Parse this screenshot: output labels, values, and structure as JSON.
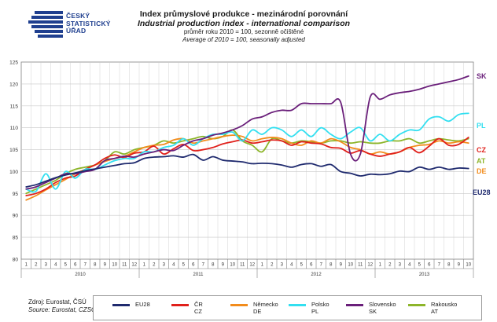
{
  "header": {
    "logo_lines": [
      "ČESKÝ",
      "STATISTICKÝ",
      "ÚŘAD"
    ],
    "title_cz": "Index průmyslové produkce - mezinárodní porovnání",
    "title_en": "Industrial production index - international comparison",
    "subtitle_cz": "průměr roku 2010 = 100, sezonně očištěné",
    "subtitle_en": "Average of 2010 = 100, seasonally adjusted"
  },
  "source": {
    "line_cz": "Zdroj: Eurostat, ČSÚ",
    "line_en": "Source: Eurostat, CZSO"
  },
  "colors": {
    "EU28": "#1f2a6e",
    "CZ": "#e0201b",
    "DE": "#f28c1c",
    "PL": "#33dff0",
    "SK": "#6a1f7a",
    "AT": "#8db52a",
    "grid": "#c8c8c8",
    "axis": "#7f7f7f"
  },
  "legend": [
    {
      "key": "EU28",
      "label_cz": "EU28",
      "label_en": ""
    },
    {
      "key": "CZ",
      "label_cz": "ČR",
      "label_en": "CZ"
    },
    {
      "key": "DE",
      "label_cz": "Německo",
      "label_en": "DE"
    },
    {
      "key": "PL",
      "label_cz": "Polsko",
      "label_en": "PL"
    },
    {
      "key": "SK",
      "label_cz": "Slovensko",
      "label_en": "SK"
    },
    {
      "key": "AT",
      "label_cz": "Rakousko",
      "label_en": "AT"
    }
  ],
  "chart_data": {
    "type": "line",
    "title": "Index průmyslové produkce - mezinárodní porovnání",
    "ylim": [
      80,
      125
    ],
    "yticks": [
      80,
      85,
      90,
      95,
      100,
      105,
      110,
      115,
      120,
      125
    ],
    "month_labels": [
      "1",
      "2",
      "3",
      "4",
      "5",
      "6",
      "7",
      "8",
      "9",
      "10",
      "11",
      "12",
      "1",
      "2",
      "3",
      "4",
      "5",
      "6",
      "7",
      "8",
      "9",
      "10",
      "11",
      "12",
      "1",
      "2",
      "3",
      "4",
      "5",
      "6",
      "7",
      "8",
      "9",
      "10",
      "11",
      "12",
      "1",
      "2",
      "3",
      "4",
      "5",
      "6",
      "7",
      "8",
      "9",
      "10"
    ],
    "year_labels": [
      "2010",
      "2011",
      "2012",
      "2013"
    ],
    "grid": true,
    "series_end_labels": {
      "SK": "SK",
      "PL": "PL",
      "CZ": "CZ",
      "AT": "AT",
      "DE": "DE",
      "EU28": "EU28"
    },
    "series": [
      {
        "name": "EU28",
        "values": [
          96.5,
          97.0,
          97.8,
          98.6,
          99.2,
          99.7,
          100.2,
          100.6,
          101.0,
          101.4,
          101.8,
          102.0,
          103.0,
          103.3,
          103.4,
          103.6,
          103.3,
          103.9,
          102.6,
          103.4,
          102.6,
          102.4,
          102.2,
          101.8,
          101.9,
          101.8,
          101.5,
          101.0,
          101.6,
          101.8,
          101.2,
          101.6,
          100.0,
          99.6,
          99.0,
          99.4,
          99.3,
          99.5,
          100.1,
          100.0,
          101.0,
          100.5,
          101.0,
          100.5,
          100.8,
          100.7
        ]
      },
      {
        "name": "CZ",
        "values": [
          94.5,
          95.0,
          96.0,
          97.5,
          98.5,
          99.0,
          100.5,
          101.5,
          103.0,
          103.8,
          103.2,
          104.2,
          104.5,
          105.8,
          104.0,
          105.2,
          106.2,
          104.8,
          105.0,
          105.5,
          106.3,
          106.8,
          107.2,
          106.5,
          106.8,
          107.2,
          107.0,
          106.0,
          106.8,
          106.5,
          106.3,
          105.5,
          105.3,
          104.2,
          104.8,
          104.0,
          103.5,
          104.0,
          104.5,
          105.5,
          104.3,
          105.8,
          107.5,
          106.0,
          106.2,
          107.8
        ]
      },
      {
        "name": "DE",
        "values": [
          93.5,
          94.5,
          95.8,
          97.0,
          98.2,
          99.5,
          100.5,
          101.5,
          102.3,
          103.0,
          103.5,
          104.5,
          105.5,
          106.0,
          106.2,
          107.2,
          107.5,
          106.5,
          107.0,
          107.5,
          108.0,
          108.3,
          108.0,
          107.0,
          107.5,
          107.8,
          107.5,
          106.5,
          106.0,
          107.0,
          106.5,
          107.5,
          106.8,
          105.5,
          105.0,
          104.0,
          104.5,
          104.0,
          104.5,
          105.5,
          106.0,
          106.2,
          107.0,
          106.5,
          106.8,
          106.5
        ]
      },
      {
        "name": "PL",
        "values": [
          96.0,
          95.5,
          99.5,
          96.0,
          100.0,
          98.5,
          100.5,
          100.5,
          101.5,
          102.5,
          103.0,
          103.0,
          104.5,
          104.5,
          105.5,
          106.0,
          107.5,
          106.0,
          107.5,
          108.5,
          108.5,
          109.0,
          107.0,
          109.5,
          108.5,
          110.0,
          109.5,
          108.0,
          109.5,
          108.0,
          110.0,
          108.5,
          107.5,
          109.0,
          110.0,
          107.0,
          108.5,
          107.0,
          108.5,
          109.5,
          109.5,
          112.0,
          112.5,
          111.5,
          113.0,
          113.3
        ]
      },
      {
        "name": "SK",
        "values": [
          96.0,
          96.5,
          97.5,
          98.5,
          99.5,
          99.5,
          100.0,
          100.5,
          102.5,
          103.0,
          103.5,
          103.3,
          104.0,
          104.5,
          105.0,
          104.8,
          106.0,
          107.0,
          107.5,
          108.3,
          108.8,
          109.5,
          110.5,
          112.0,
          112.5,
          113.5,
          114.0,
          114.0,
          115.5,
          115.5,
          115.5,
          115.5,
          115.8,
          104.0,
          104.0,
          117.0,
          116.5,
          117.5,
          118.0,
          118.3,
          118.8,
          119.5,
          120.0,
          120.5,
          121.0,
          121.8
        ]
      },
      {
        "name": "AT",
        "values": [
          95.0,
          96.0,
          97.0,
          98.0,
          99.5,
          100.5,
          101.0,
          101.5,
          102.5,
          104.5,
          104.0,
          105.0,
          105.5,
          106.0,
          107.0,
          106.5,
          107.0,
          107.5,
          108.0,
          107.5,
          108.0,
          109.5,
          107.0,
          106.0,
          104.5,
          107.5,
          107.0,
          106.5,
          107.0,
          106.8,
          106.5,
          107.0,
          107.0,
          106.5,
          106.8,
          106.5,
          106.5,
          107.0,
          107.0,
          107.5,
          106.5,
          107.0,
          107.5,
          107.2,
          107.0,
          107.5
        ]
      }
    ]
  }
}
